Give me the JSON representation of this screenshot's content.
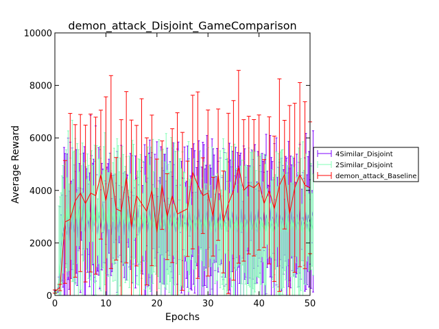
{
  "chart_data": {
    "type": "line",
    "title": "demon_attack_Disjoint_GameComparison",
    "xlabel": "Epochs",
    "ylabel": "Average Reward",
    "xlim": [
      0,
      50
    ],
    "ylim": [
      0,
      10000
    ],
    "x_ticks": [
      "0",
      "10",
      "20",
      "30",
      "40",
      "50"
    ],
    "y_ticks": [
      "0",
      "2000",
      "4000",
      "6000",
      "8000",
      "10000"
    ],
    "grid": false,
    "legend_position": "right",
    "series": [
      {
        "name": "4Similar_Disjoint",
        "color": "#7f00ff",
        "x_start": 0,
        "x_step": 0.2,
        "values": [
          120,
          130,
          150,
          200,
          500,
          1100,
          1800,
          2200,
          2400,
          2600,
          2700,
          2500,
          2300,
          3300,
          2100,
          2900,
          2500,
          3300,
          2800,
          2400,
          2600,
          3200,
          2200,
          2900,
          3400,
          2100,
          3000,
          2800,
          3600,
          2600,
          2400,
          3300,
          2700,
          2900,
          2500,
          3800,
          2400,
          3100,
          2600,
          2900,
          3500,
          2700,
          2300,
          3200,
          2900,
          2500,
          3000,
          3600,
          2400,
          2800,
          3100,
          2200,
          2900,
          3400,
          2600,
          2700,
          2300,
          3000,
          3300,
          2500,
          3200,
          2800,
          2400,
          3100,
          2600,
          3500,
          2700,
          2900,
          2300,
          3000,
          2600,
          3300,
          2800,
          2400,
          3200,
          2700,
          2900,
          2500,
          3100,
          2800,
          2600,
          3400,
          2700,
          2300,
          3000,
          2900,
          2500,
          3200,
          2800,
          2600,
          3100,
          2400,
          2900,
          3300,
          2700,
          2500,
          3000,
          2800,
          3400,
          2600,
          2900,
          2700,
          3100,
          2500,
          2800,
          3200,
          2600,
          2900,
          2400,
          3000,
          3300,
          2700,
          2500,
          3100,
          2800,
          2600,
          2900,
          3200,
          2400,
          2700,
          3000,
          2800,
          2500,
          3300,
          2600,
          2900,
          3100,
          2700,
          2800,
          2500,
          3000,
          2600,
          3200,
          2400,
          2900,
          2700,
          3100,
          2800,
          2600,
          3000,
          2500,
          3300,
          2700,
          2900,
          2400,
          3100,
          2800,
          2600,
          3000,
          3200,
          2700,
          2900,
          2500,
          2800,
          3100,
          2600,
          3300,
          2400,
          2900,
          2700,
          3000,
          2800,
          3200,
          2500,
          2600,
          3100,
          2900,
          2700,
          2800,
          3400,
          2600,
          3000,
          2500,
          2900,
          3200,
          2700,
          2800,
          2600,
          3100,
          2400,
          3000,
          2900,
          2700,
          3300,
          2500,
          2800,
          3100,
          2600,
          2900,
          2700,
          3000,
          2800,
          3200,
          2500,
          2900,
          2600,
          3100,
          2800,
          2400,
          3300,
          2700,
          2900,
          3000,
          2600,
          2800,
          3200,
          2500,
          3100,
          2900,
          2700,
          2800,
          3400,
          2600,
          2900,
          3000,
          2700,
          2500,
          3200,
          2800,
          2600,
          3100,
          2900,
          2700,
          3000,
          2800,
          2600,
          3300,
          2500,
          2900,
          3100,
          2700,
          2800,
          3200,
          2600,
          3000,
          2900,
          2500,
          3100,
          2800,
          2700,
          3300,
          2600,
          2900,
          3000,
          2800,
          2700,
          3200,
          2500,
          3100,
          2900,
          2800,
          2600,
          3000,
          3200
        ]
      },
      {
        "name": "2Similar_Disjoint",
        "color": "#80ffb4",
        "x_start": 0,
        "x_step": 0.2,
        "values": [
          100,
          110,
          140,
          300,
          700,
          1200,
          1900,
          2500,
          2900,
          3100,
          2800,
          3300,
          2700,
          3500,
          2600,
          3400,
          2800,
          3600,
          3000,
          2700,
          3200,
          2900,
          3500,
          2600,
          3300,
          2800,
          3700,
          2900,
          2600,
          3400,
          3000,
          2700,
          3600,
          2800,
          3200,
          2900,
          2500,
          3500,
          2700,
          3100,
          2800,
          3400,
          2600,
          3200,
          3000,
          2700,
          3500,
          2900,
          2600,
          3300,
          2800,
          3100,
          2700,
          3600,
          2500,
          3200,
          2900,
          2800,
          3400,
          2600,
          3100,
          3000,
          2700,
          3500,
          2800,
          3200,
          2600,
          3300,
          2900,
          2700,
          3400,
          2500,
          3100,
          2800,
          3000,
          2600,
          3200,
          2700,
          2900,
          3300,
          2500,
          3000,
          2800,
          2600,
          3100,
          2900,
          2700,
          3200,
          2400,
          3000,
          2800,
          2700,
          3100,
          2600,
          2900,
          2500,
          3200,
          2800,
          2600,
          3000,
          2700,
          2400,
          3100,
          2900,
          2600,
          2800,
          3000,
          2500,
          2700,
          3200,
          2600,
          2900,
          2400,
          2800,
          3000,
          2700,
          2500,
          3100,
          2600,
          2800,
          2900,
          2400,
          3000,
          2700,
          2600,
          2900,
          2500,
          3100,
          2800,
          2400,
          2700,
          3000,
          2600,
          2900,
          2500,
          2800,
          3100,
          2400,
          2700,
          2900,
          2600,
          3000,
          2500,
          2800,
          2700,
          2400,
          3100,
          2600,
          2900,
          2500,
          2700,
          3000,
          2800,
          2400,
          2600,
          2900,
          2700,
          2500,
          3000,
          2600,
          2800,
          2400,
          2900,
          2700,
          2500,
          3100,
          2600,
          2800,
          2400,
          2700,
          2900,
          2600,
          2500,
          3000,
          2700,
          2400,
          2800,
          2600,
          2900,
          2500,
          2700,
          3000,
          2400,
          2800,
          2600,
          2500,
          2900,
          2700,
          2400,
          2800,
          3000,
          2600,
          2500,
          2700,
          2900,
          2400,
          2800,
          2600,
          2500,
          3000,
          2700,
          2400,
          2900,
          2600,
          2800,
          2500,
          2700,
          2400,
          3000,
          2600,
          2800,
          2500,
          2900,
          2700,
          2400,
          2600,
          2800,
          2500,
          3000,
          2700,
          2600,
          2400,
          2900,
          2800,
          2500,
          2700,
          2600,
          3100,
          2400,
          2800,
          2700,
          2500,
          2900,
          2600,
          2800,
          2400,
          2700,
          3000,
          2500,
          2600,
          2900,
          2700,
          2400,
          2800,
          2600,
          2500,
          2900,
          2700,
          2800,
          2400,
          2600,
          3000,
          2500,
          2700
        ]
      },
      {
        "name": "demon_attack_Baseline",
        "color": "#ff0000",
        "x_start": 0,
        "x_step": 1,
        "values": [
          150,
          300,
          2800,
          2900,
          3600,
          3900,
          3500,
          3900,
          3800,
          4600,
          3600,
          4700,
          3300,
          3200,
          4500,
          2600,
          3800,
          3500,
          3200,
          4000,
          2400,
          4200,
          3000,
          3800,
          3100,
          3200,
          3300,
          4700,
          4200,
          3800,
          3900,
          3000,
          4600,
          2800,
          3500,
          4000,
          4900,
          4000,
          4200,
          4100,
          4300,
          3500,
          4000,
          3300,
          4200,
          4600,
          3100,
          4100,
          4600,
          4200,
          4100
        ]
      }
    ]
  }
}
